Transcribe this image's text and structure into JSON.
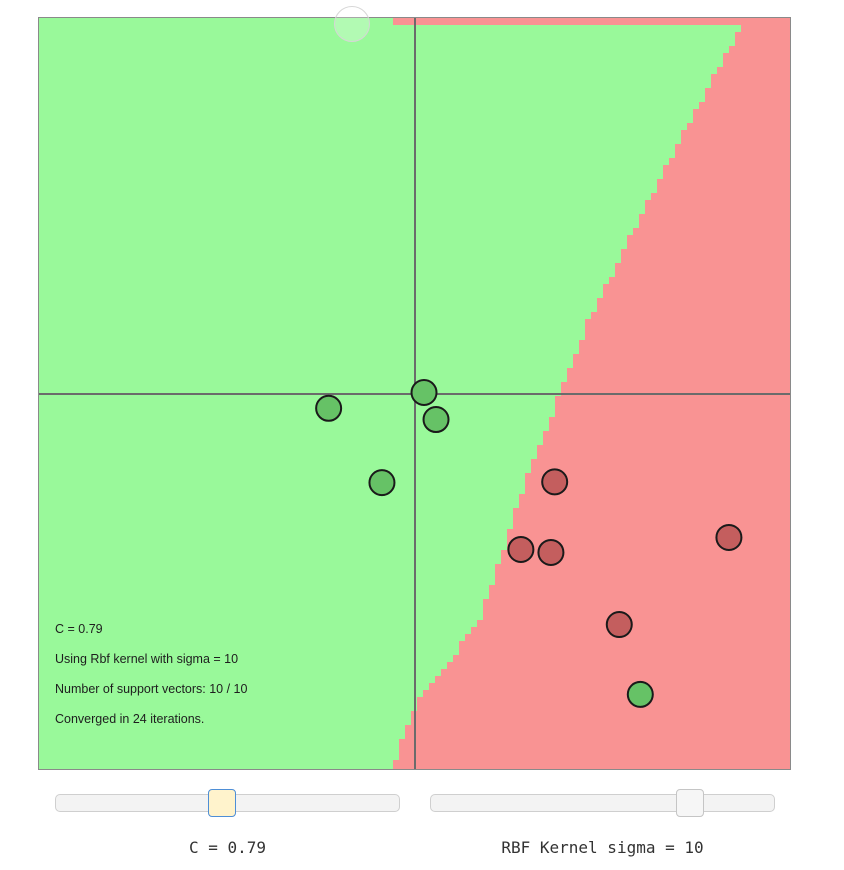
{
  "plot": {
    "info": {
      "c_line": "C = 0.79",
      "kernel_line": "Using Rbf kernel with sigma = 10",
      "sv_line": "Number of support vectors: 10 / 10",
      "iter_line": "Converged in 24 iterations."
    }
  },
  "controls": {
    "c_slider": {
      "value_fraction": 0.48,
      "label": "C = 0.79"
    },
    "sigma_slider": {
      "value_fraction": 0.75,
      "label": "RBF Kernel sigma = 10"
    }
  },
  "colors": {
    "positive_region": "#99f99a",
    "negative_region": "#f99393",
    "positive_point": "#66c266",
    "negative_point": "#c45e5e",
    "axis": "#6b6b6b",
    "point_stroke": "#1a1a1a"
  },
  "chart_data": {
    "type": "scatter",
    "title": "",
    "xlabel": "",
    "ylabel": "",
    "xlim": [
      -5,
      5
    ],
    "ylim": [
      -5,
      5
    ],
    "grid": false,
    "series": [
      {
        "class": "green",
        "points": [
          {
            "x": -1.15,
            "y": -0.19
          },
          {
            "x": 0.12,
            "y": 0.02
          },
          {
            "x": 0.28,
            "y": -0.34
          },
          {
            "x": -0.44,
            "y": -1.18
          },
          {
            "x": 3.0,
            "y": -4.0
          }
        ]
      },
      {
        "class": "red",
        "points": [
          {
            "x": 1.86,
            "y": -1.17
          },
          {
            "x": 1.41,
            "y": -2.07
          },
          {
            "x": 1.81,
            "y": -2.11
          },
          {
            "x": 4.18,
            "y": -1.91
          },
          {
            "x": 2.72,
            "y": -3.07
          }
        ]
      }
    ],
    "decision_boundary": [
      {
        "x": 4.37,
        "y": 5.0
      },
      {
        "x": 3.3,
        "y": 3.0
      },
      {
        "x": 2.3,
        "y": 1.0
      },
      {
        "x": 1.52,
        "y": -1.0
      },
      {
        "x": 0.84,
        "y": -3.0
      },
      {
        "x": 0.0,
        "y": -4.1
      },
      {
        "x": -0.33,
        "y": -5.0
      }
    ]
  }
}
